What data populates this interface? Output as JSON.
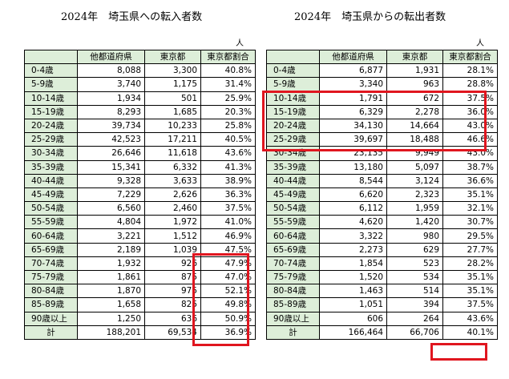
{
  "left": {
    "title": "2024年　埼玉県への転入者数",
    "unit": "人",
    "headers": [
      "他都道府県",
      "東京都",
      "東京都割合"
    ],
    "rows": [
      [
        "0-4歳",
        "8,088",
        "3,300",
        "40.8%"
      ],
      [
        "5-9歳",
        "3,740",
        "1,175",
        "31.4%"
      ],
      [
        "10-14歳",
        "1,934",
        "501",
        "25.9%"
      ],
      [
        "15-19歳",
        "8,293",
        "1,685",
        "20.3%"
      ],
      [
        "20-24歳",
        "39,734",
        "10,233",
        "25.8%"
      ],
      [
        "25-29歳",
        "42,523",
        "17,211",
        "40.5%"
      ],
      [
        "30-34歳",
        "26,646",
        "11,618",
        "43.6%"
      ],
      [
        "35-39歳",
        "15,341",
        "6,332",
        "41.3%"
      ],
      [
        "40-44歳",
        "9,328",
        "3,633",
        "38.9%"
      ],
      [
        "45-49歳",
        "7,229",
        "2,626",
        "36.3%"
      ],
      [
        "50-54歳",
        "6,560",
        "2,460",
        "37.5%"
      ],
      [
        "55-59歳",
        "4,804",
        "1,972",
        "41.0%"
      ],
      [
        "60-64歳",
        "3,221",
        "1,512",
        "46.9%"
      ],
      [
        "65-69歳",
        "2,189",
        "1,039",
        "47.5%"
      ],
      [
        "70-74歳",
        "1,932",
        "926",
        "47.9%"
      ],
      [
        "75-79歳",
        "1,861",
        "875",
        "47.0%"
      ],
      [
        "80-84歳",
        "1,870",
        "975",
        "52.1%"
      ],
      [
        "85-89歳",
        "1,658",
        "825",
        "49.8%"
      ],
      [
        "90歳以上",
        "1,250",
        "636",
        "50.9%"
      ],
      [
        "計",
        "188,201",
        "69,534",
        "36.9%"
      ]
    ]
  },
  "right": {
    "title": "2024年　埼玉県からの転出者数",
    "unit": "人",
    "headers": [
      "他都道府県",
      "東京都",
      "東京都割合"
    ],
    "rows": [
      [
        "0-4歳",
        "6,877",
        "1,931",
        "28.1%"
      ],
      [
        "5-9歳",
        "3,340",
        "963",
        "28.8%"
      ],
      [
        "10-14歳",
        "1,791",
        "672",
        "37.5%"
      ],
      [
        "15-19歳",
        "6,329",
        "2,278",
        "36.0%"
      ],
      [
        "20-24歳",
        "34,130",
        "14,664",
        "43.0%"
      ],
      [
        "25-29歳",
        "39,697",
        "18,488",
        "46.6%"
      ],
      [
        "30-34歳",
        "23,135",
        "9,949",
        "43.0%"
      ],
      [
        "35-39歳",
        "13,180",
        "5,097",
        "38.7%"
      ],
      [
        "40-44歳",
        "8,544",
        "3,124",
        "36.6%"
      ],
      [
        "45-49歳",
        "6,620",
        "2,323",
        "35.1%"
      ],
      [
        "50-54歳",
        "6,112",
        "1,959",
        "32.1%"
      ],
      [
        "55-59歳",
        "4,620",
        "1,420",
        "30.7%"
      ],
      [
        "60-64歳",
        "3,322",
        "980",
        "29.5%"
      ],
      [
        "65-69歳",
        "2,273",
        "629",
        "27.7%"
      ],
      [
        "70-74歳",
        "1,854",
        "523",
        "28.2%"
      ],
      [
        "75-79歳",
        "1,520",
        "534",
        "35.1%"
      ],
      [
        "80-84歳",
        "1,463",
        "514",
        "35.1%"
      ],
      [
        "85-89歳",
        "1,051",
        "394",
        "37.5%"
      ],
      [
        "90歳以上",
        "606",
        "264",
        "43.6%"
      ],
      [
        "計",
        "166,464",
        "66,706",
        "40.1%"
      ]
    ]
  },
  "colors": {
    "label_bg": "#ddeed9",
    "highlight": "#e0161f",
    "border": "#000000"
  }
}
